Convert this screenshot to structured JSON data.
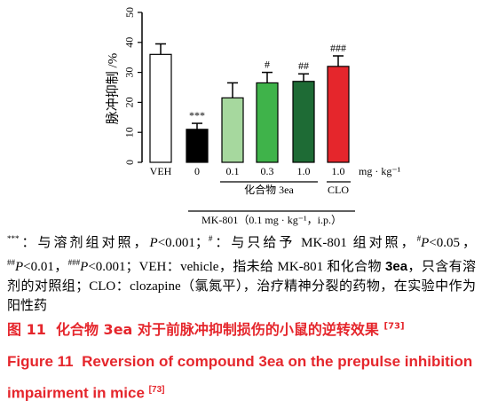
{
  "chart_data": {
    "type": "bar",
    "y_label": "脉冲抑制 /%",
    "categories": [
      "VEH",
      "0",
      "0.1",
      "0.3",
      "1.0",
      "1.0"
    ],
    "unit": "mg · kg⁻¹",
    "values": [
      36,
      11,
      21.5,
      26.5,
      27,
      32
    ],
    "errors": [
      3.5,
      2,
      5,
      3.5,
      2.5,
      3.5
    ],
    "colors": [
      "#ffffff",
      "#000000",
      "#a6d89e",
      "#3fb34a",
      "#1e6b35",
      "#e5262c"
    ],
    "annotations": [
      null,
      "***",
      null,
      "#",
      "##",
      "###"
    ],
    "group_labels": [
      "化合物 3ea",
      "CLO"
    ],
    "treatment_label": "MK-801（0.1 mg · kg⁻¹，i.p.）",
    "ylim": [
      0,
      50
    ],
    "yticks": [
      0,
      10,
      20,
      30,
      40,
      50
    ]
  },
  "figure": {
    "note": [
      "***",
      "：与溶剂组对照，",
      "P",
      "<0.001；",
      "#",
      "：与只给予 MK-801 组对照，",
      "#",
      "P",
      "<0.05，",
      "##",
      "P",
      "<0.01，",
      "###",
      "P",
      "<0.001；VEH：vehicle，指未给 MK-801 和化合物 ",
      "3ea",
      "，只含有溶剂的对照组；CLO：clozapine（氯氮平），治疗精神分裂的药物，在实验中作为阳性药"
    ],
    "caption_zh": {
      "label": "图 11",
      "text": "化合物 3ea 对于前脉冲抑制损伤的小鼠的逆转效果",
      "ref": "[73]"
    },
    "caption_en": {
      "label": "Figure 11",
      "text": "Reversion of compound 3ea on the prepulse inhibition impairment in mice",
      "ref": "[73]"
    }
  }
}
